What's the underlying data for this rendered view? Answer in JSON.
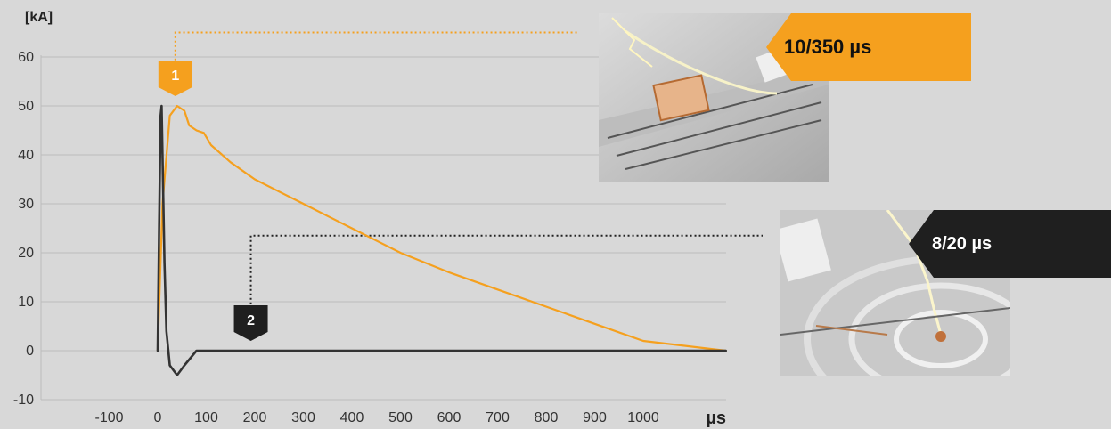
{
  "chart_data": {
    "type": "line",
    "ylabel": "[kA]",
    "xlabel": "µs",
    "ylim": [
      -10,
      60
    ],
    "y_ticks": [
      "60",
      "50",
      "40",
      "30",
      "20",
      "10",
      "0",
      "-10"
    ],
    "x_ticks": [
      "-100",
      "0",
      "100",
      "200",
      "300",
      "400",
      "500",
      "600",
      "700",
      "800",
      "900",
      "1000"
    ],
    "x_tick_values": [
      -100,
      0,
      100,
      200,
      300,
      400,
      500,
      600,
      700,
      800,
      900,
      1000
    ],
    "grid": true,
    "series": [
      {
        "name": "10/350 µs",
        "color": "#f5a01e",
        "points": [
          [
            0,
            0
          ],
          [
            10,
            30
          ],
          [
            25,
            48
          ],
          [
            40,
            50
          ],
          [
            55,
            49
          ],
          [
            65,
            46
          ],
          [
            80,
            45
          ],
          [
            95,
            44.5
          ],
          [
            110,
            42
          ],
          [
            150,
            38.5
          ],
          [
            200,
            35
          ],
          [
            250,
            32.5
          ],
          [
            300,
            30
          ],
          [
            350,
            27.5
          ],
          [
            400,
            25
          ],
          [
            450,
            22.5
          ],
          [
            500,
            20
          ],
          [
            600,
            16
          ],
          [
            700,
            12.5
          ],
          [
            800,
            9
          ],
          [
            900,
            5.5
          ],
          [
            1000,
            2
          ],
          [
            1170,
            0
          ]
        ]
      },
      {
        "name": "8/20 µs",
        "color": "#333333",
        "points": [
          [
            0,
            0
          ],
          [
            3,
            25
          ],
          [
            6,
            48
          ],
          [
            8,
            50
          ],
          [
            10,
            40
          ],
          [
            14,
            18
          ],
          [
            18,
            4
          ],
          [
            25,
            -3
          ],
          [
            40,
            -5
          ],
          [
            55,
            -3
          ],
          [
            80,
            0
          ],
          [
            1170,
            0
          ]
        ]
      }
    ],
    "markers": [
      {
        "label": "1",
        "color": "#f5a01e",
        "text_color": "#ffffff",
        "x": 40,
        "line_y": 65
      },
      {
        "label": "2",
        "color": "#1f1f1f",
        "text_color": "#ffffff",
        "x": 190,
        "line_y": 23.5
      }
    ],
    "annotations": [
      {
        "label": "10/350 µs",
        "background": "#f5a01e",
        "text_color": "#111111"
      },
      {
        "label": "8/20 µs",
        "background": "#1f1f1f",
        "text_color": "#ffffff"
      }
    ]
  }
}
